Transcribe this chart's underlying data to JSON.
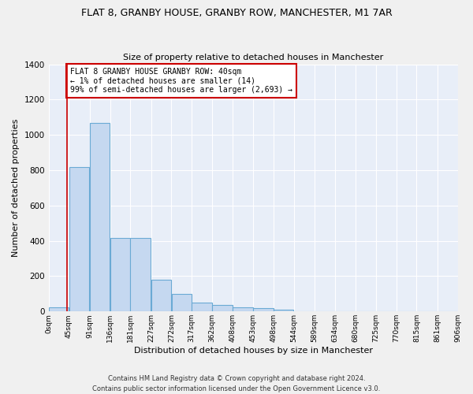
{
  "title": "FLAT 8, GRANBY HOUSE, GRANBY ROW, MANCHESTER, M1 7AR",
  "subtitle": "Size of property relative to detached houses in Manchester",
  "xlabel": "Distribution of detached houses by size in Manchester",
  "ylabel": "Number of detached properties",
  "bar_color": "#c5d8f0",
  "bar_edge_color": "#6aaad4",
  "background_color": "#e8eef8",
  "grid_color": "#d0d8e8",
  "bin_labels": [
    "0sqm",
    "45sqm",
    "91sqm",
    "136sqm",
    "181sqm",
    "227sqm",
    "272sqm",
    "317sqm",
    "362sqm",
    "408sqm",
    "453sqm",
    "498sqm",
    "544sqm",
    "589sqm",
    "634sqm",
    "680sqm",
    "725sqm",
    "770sqm",
    "815sqm",
    "861sqm",
    "906sqm"
  ],
  "bar_heights": [
    25,
    820,
    1070,
    415,
    415,
    180,
    100,
    52,
    35,
    25,
    17,
    8,
    0,
    0,
    0,
    0,
    0,
    0,
    0,
    0
  ],
  "bin_edges": [
    0,
    45,
    91,
    136,
    181,
    227,
    272,
    317,
    362,
    408,
    453,
    498,
    544,
    589,
    634,
    680,
    725,
    770,
    815,
    861,
    906
  ],
  "ylim": [
    0,
    1400
  ],
  "yticks": [
    0,
    200,
    400,
    600,
    800,
    1000,
    1200,
    1400
  ],
  "property_line_x": 40,
  "annotation_text": "FLAT 8 GRANBY HOUSE GRANBY ROW: 40sqm\n← 1% of detached houses are smaller (14)\n99% of semi-detached houses are larger (2,693) →",
  "annotation_box_color": "#ffffff",
  "annotation_box_edge": "#cc0000",
  "vline_color": "#cc0000",
  "footer_line1": "Contains HM Land Registry data © Crown copyright and database right 2024.",
  "footer_line2": "Contains public sector information licensed under the Open Government Licence v3.0."
}
